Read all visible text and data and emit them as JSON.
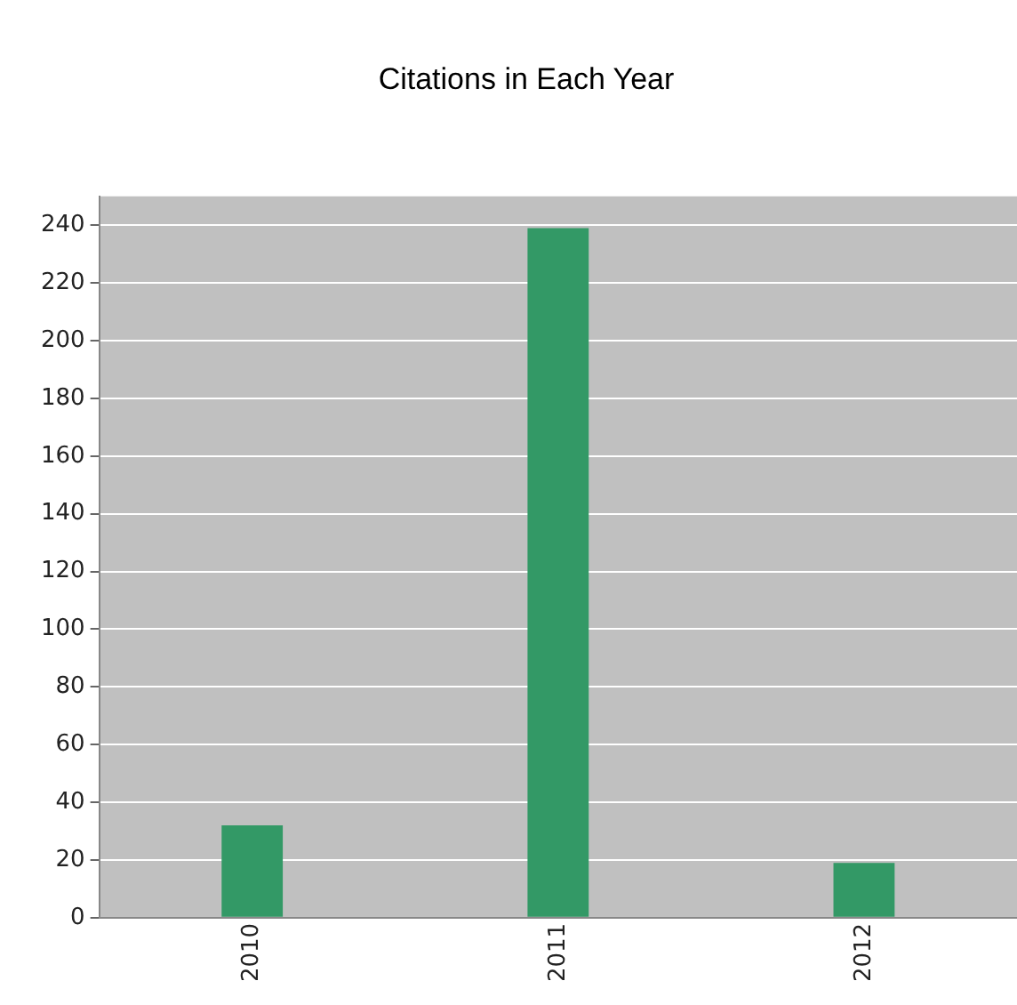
{
  "chart_data": {
    "type": "bar",
    "title": "Citations in Each Year",
    "categories": [
      "2010",
      "2011",
      "2012"
    ],
    "values": [
      32,
      239,
      19
    ],
    "color": "#339966",
    "ylim": [
      0,
      250
    ],
    "yticks": [
      0,
      20,
      40,
      60,
      80,
      100,
      120,
      140,
      160,
      180,
      200,
      220,
      240
    ],
    "grid": "y"
  }
}
